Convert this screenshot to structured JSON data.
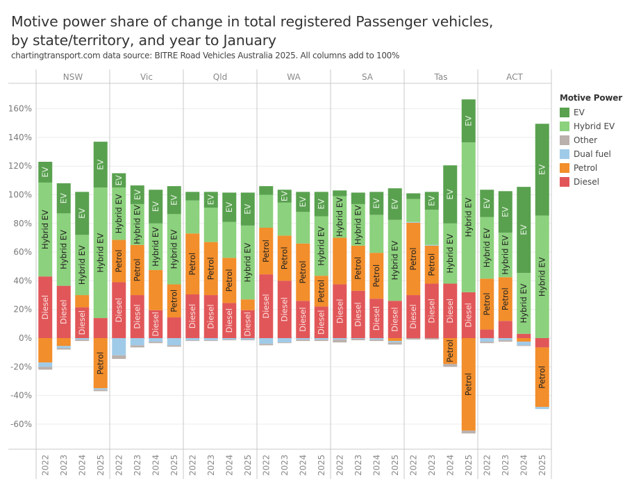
{
  "title": "Motive power share of change in total registered Passenger vehicles, by state/territory, and year to January",
  "subtitle": "chartingtransport.com  data source: BITRE Road Vehicles Australia 2025. All columns add to 100%",
  "legend": {
    "title": "Motive Power",
    "items": [
      {
        "label": "EV",
        "color": "#59a14f"
      },
      {
        "label": "Hybrid EV",
        "color": "#8cd17d"
      },
      {
        "label": "Other",
        "color": "#bab0ac"
      },
      {
        "label": "Dual fuel",
        "color": "#a0cbe8"
      },
      {
        "label": "Petrol",
        "color": "#f28e2b"
      },
      {
        "label": "Diesel",
        "color": "#e15759"
      }
    ]
  },
  "chart_data": {
    "type": "bar",
    "stacked": true,
    "title": "Motive power share of change in total registered Passenger vehicles, by state/territory, and year to January",
    "xlabel": "",
    "ylabel": "",
    "ylim": [
      -75,
      175
    ],
    "yticks": [
      -60,
      -40,
      -20,
      0,
      20,
      40,
      60,
      80,
      100,
      120,
      140,
      160
    ],
    "ytick_labels": [
      "-60%",
      "-40%",
      "-20%",
      "0%",
      "20%",
      "40%",
      "60%",
      "80%",
      "100%",
      "120%",
      "140%",
      "160%"
    ],
    "grid": true,
    "legend_position": "right",
    "panels": [
      "NSW",
      "Vic",
      "Qld",
      "WA",
      "SA",
      "Tas",
      "ACT"
    ],
    "categories": [
      "2022",
      "2023",
      "2024",
      "2025"
    ],
    "series_order_positive": [
      "Diesel",
      "Petrol",
      "Dual fuel",
      "Other",
      "Hybrid EV",
      "EV"
    ],
    "series_order_negative": [
      "Diesel",
      "Petrol",
      "Dual fuel",
      "Other",
      "Hybrid EV",
      "EV"
    ],
    "units": "percent of change",
    "data": {
      "NSW": [
        {
          "Diesel": 43,
          "Petrol": -17,
          "Dual fuel": -3,
          "Other": -2,
          "Hybrid EV": 65.5,
          "EV": 14.5
        },
        {
          "Diesel": 36.5,
          "Petrol": -5.5,
          "Dual fuel": -1.5,
          "Other": -1,
          "Hybrid EV": 50.5,
          "EV": 21
        },
        {
          "Diesel": 21.5,
          "Petrol": 8.5,
          "Dual fuel": -1,
          "Other": -1,
          "Hybrid EV": 42,
          "EV": 30
        },
        {
          "Diesel": 14,
          "Petrol": -35,
          "Dual fuel": -1,
          "Other": -1,
          "Hybrid EV": 91,
          "EV": 32
        }
      ],
      "Vic": [
        {
          "Diesel": 39,
          "Petrol": 29.5,
          "Dual fuel": -12,
          "Other": -2.5,
          "Hybrid EV": 36.5,
          "EV": 10
        },
        {
          "Diesel": 30,
          "Petrol": 35,
          "Dual fuel": -5,
          "Other": -1.5,
          "Hybrid EV": 28.5,
          "EV": 13
        },
        {
          "Diesel": 19.5,
          "Petrol": 28,
          "Dual fuel": -2.5,
          "Other": -1,
          "Hybrid EV": 32.5,
          "EV": 23.5
        },
        {
          "Diesel": 14.5,
          "Petrol": 23,
          "Dual fuel": -5,
          "Other": -1,
          "Hybrid EV": 49,
          "EV": 19.5
        }
      ],
      "Qld": [
        {
          "Diesel": 30.5,
          "Petrol": 42.5,
          "Dual fuel": -1.5,
          "Other": -0.5,
          "Hybrid EV": 23,
          "EV": 6
        },
        {
          "Diesel": 30,
          "Petrol": 37,
          "Dual fuel": -1.5,
          "Other": -0.5,
          "Hybrid EV": 24,
          "EV": 11
        },
        {
          "Diesel": 24.5,
          "Petrol": 31.5,
          "Dual fuel": -1,
          "Other": -0.5,
          "Hybrid EV": 25,
          "EV": 20.5
        },
        {
          "Diesel": 19.5,
          "Petrol": 7.5,
          "Dual fuel": -1,
          "Other": -0.5,
          "Hybrid EV": 51.5,
          "EV": 23
        }
      ],
      "WA": [
        {
          "Diesel": 44.5,
          "Petrol": 32.5,
          "Dual fuel": -4,
          "Other": -1,
          "Hybrid EV": 23,
          "EV": 6
        },
        {
          "Diesel": 40,
          "Petrol": 31.5,
          "Dual fuel": -3,
          "Other": -0.5,
          "Hybrid EV": 23,
          "EV": 9
        },
        {
          "Diesel": 26,
          "Petrol": 40,
          "Dual fuel": -1,
          "Other": -1,
          "Hybrid EV": 22,
          "EV": 14
        },
        {
          "Diesel": 22,
          "Petrol": 21.5,
          "Dual fuel": -1,
          "Other": -1,
          "Hybrid EV": 41.5,
          "EV": 17
        }
      ],
      "SA": [
        {
          "Diesel": 37.5,
          "Petrol": 32.5,
          "Dual fuel": -1,
          "Other": -2,
          "Hybrid EV": 29,
          "EV": 4
        },
        {
          "Diesel": 33,
          "Petrol": 31.5,
          "Dual fuel": -0.5,
          "Other": -1,
          "Hybrid EV": 29,
          "EV": 8
        },
        {
          "Diesel": 27.5,
          "Petrol": 32,
          "Dual fuel": -1,
          "Other": -1,
          "Hybrid EV": 26.5,
          "EV": 16
        },
        {
          "Diesel": 26,
          "Petrol": -2,
          "Dual fuel": -1,
          "Other": -1.5,
          "Hybrid EV": 56.5,
          "EV": 22
        }
      ],
      "Tas": [
        {
          "Diesel": 30,
          "Petrol": 50.5,
          "Dual fuel": 0.5,
          "Other": -1,
          "Hybrid EV": 16,
          "EV": 4
        },
        {
          "Diesel": 38,
          "Petrol": 26.5,
          "Dual fuel": 0.5,
          "Other": -1,
          "Hybrid EV": 24.5,
          "EV": 12.5
        },
        {
          "Diesel": 38,
          "Petrol": -18,
          "Dual fuel": 0,
          "Other": -2,
          "Hybrid EV": 42,
          "EV": 40.5
        },
        {
          "Diesel": 32,
          "Petrol": -64.5,
          "Dual fuel": 0,
          "Other": -2,
          "Hybrid EV": 104.5,
          "EV": 30
        }
      ],
      "ACT": [
        {
          "Diesel": 6,
          "Petrol": 35.5,
          "Dual fuel": -2.5,
          "Other": -1,
          "Hybrid EV": 43,
          "EV": 19
        },
        {
          "Diesel": 12,
          "Petrol": 30.5,
          "Dual fuel": -1.5,
          "Other": -1,
          "Hybrid EV": 31,
          "EV": 29
        },
        {
          "Diesel": 3,
          "Petrol": -2.5,
          "Dual fuel": -2.5,
          "Other": -0.5,
          "Hybrid EV": 42.5,
          "EV": 60
        },
        {
          "Diesel": -6.5,
          "Petrol": -41.5,
          "Dual fuel": -1.5,
          "Other": 0,
          "Hybrid EV": 85.5,
          "EV": 64
        }
      ]
    },
    "segment_labels_shown": {
      "NSW": [
        [
          "Diesel",
          "Hybrid EV",
          "EV"
        ],
        [
          "Diesel",
          "Hybrid EV",
          "EV"
        ],
        [
          "Diesel",
          "Hybrid EV",
          "EV"
        ],
        [
          "Petrol",
          "Hybrid EV",
          "EV"
        ]
      ],
      "Vic": [
        [
          "Diesel",
          "Petrol",
          "Hybrid EV",
          "EV"
        ],
        [
          "Diesel",
          "Petrol",
          "Hybrid EV",
          "EV"
        ],
        [
          "Diesel",
          "Hybrid EV",
          "EV"
        ],
        [
          "Petrol",
          "Hybrid EV",
          "EV"
        ]
      ],
      "Qld": [
        [
          "Diesel",
          "Petrol"
        ],
        [
          "Diesel",
          "Petrol",
          "EV"
        ],
        [
          "Diesel",
          "Petrol",
          "EV"
        ],
        [
          "Diesel",
          "Hybrid EV",
          "EV"
        ]
      ],
      "WA": [
        [
          "Diesel",
          "Petrol"
        ],
        [
          "Diesel",
          "Petrol",
          "EV"
        ],
        [
          "Diesel",
          "Petrol",
          "EV"
        ],
        [
          "Diesel",
          "Petrol",
          "Hybrid EV",
          "EV"
        ]
      ],
      "SA": [
        [
          "Diesel",
          "Hybrid EV"
        ],
        [
          "Diesel",
          "Petrol",
          "Hybrid EV"
        ],
        [
          "Diesel",
          "Petrol",
          "EV"
        ],
        [
          "Diesel",
          "Hybrid EV",
          "EV"
        ]
      ],
      "Tas": [
        [
          "Diesel",
          "Petrol"
        ],
        [
          "Diesel",
          "Petrol",
          "EV"
        ],
        [
          "Diesel",
          "Petrol",
          "Hybrid EV",
          "EV"
        ],
        [
          "Diesel",
          "Petrol",
          "Hybrid EV",
          "EV"
        ]
      ],
      "ACT": [
        [
          "Petrol",
          "Hybrid EV",
          "EV"
        ],
        [
          "Petrol",
          "Hybrid EV",
          "EV"
        ],
        [
          "Hybrid EV",
          "EV"
        ],
        [
          "Petrol",
          "Hybrid EV",
          "EV"
        ]
      ]
    }
  }
}
